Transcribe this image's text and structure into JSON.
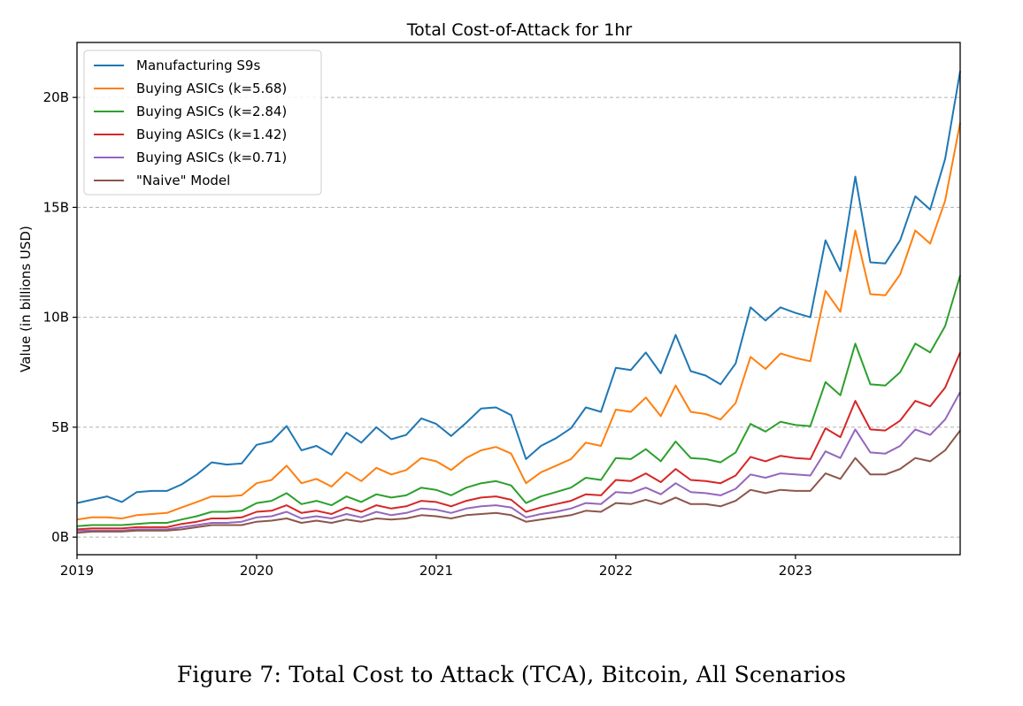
{
  "caption": "Figure 7: Total Cost to Attack (TCA), Bitcoin, All Scenarios",
  "chart_data": {
    "type": "line",
    "title": "Total Cost-of-Attack for 1hr",
    "xlabel": "",
    "ylabel": "Value (in billions USD)",
    "xlim": [
      2019.0,
      2023.917
    ],
    "ylim": [
      -0.8,
      22.5
    ],
    "x_ticks": [
      {
        "value": 2019,
        "label": "2019"
      },
      {
        "value": 2020,
        "label": "2020"
      },
      {
        "value": 2021,
        "label": "2021"
      },
      {
        "value": 2022,
        "label": "2022"
      },
      {
        "value": 2023,
        "label": "2023"
      }
    ],
    "y_ticks": [
      {
        "value": 0,
        "label": "0B"
      },
      {
        "value": 5,
        "label": "5B"
      },
      {
        "value": 10,
        "label": "10B"
      },
      {
        "value": 15,
        "label": "15B"
      },
      {
        "value": 20,
        "label": "20B"
      }
    ],
    "grid": "horizontal dashed",
    "legend_position": "top-left",
    "x": [
      2019.0,
      2019.083,
      2019.167,
      2019.25,
      2019.333,
      2019.417,
      2019.5,
      2019.583,
      2019.667,
      2019.75,
      2019.833,
      2019.917,
      2020.0,
      2020.083,
      2020.167,
      2020.25,
      2020.333,
      2020.417,
      2020.5,
      2020.583,
      2020.667,
      2020.75,
      2020.833,
      2020.917,
      2021.0,
      2021.083,
      2021.167,
      2021.25,
      2021.333,
      2021.417,
      2021.5,
      2021.583,
      2021.667,
      2021.75,
      2021.833,
      2021.917,
      2022.0,
      2022.083,
      2022.167,
      2022.25,
      2022.333,
      2022.417,
      2022.5,
      2022.583,
      2022.667,
      2022.75,
      2022.833,
      2022.917,
      2023.0,
      2023.083,
      2023.167,
      2023.25,
      2023.333,
      2023.417,
      2023.5,
      2023.583,
      2023.667,
      2023.75,
      2023.833,
      2023.917
    ],
    "series": [
      {
        "name": "Manufacturing S9s",
        "color": "#1f77b4",
        "values": [
          1.55,
          1.7,
          1.85,
          1.6,
          2.05,
          2.1,
          2.1,
          2.4,
          2.85,
          3.4,
          3.3,
          3.35,
          4.2,
          4.35,
          5.05,
          3.95,
          4.15,
          3.75,
          4.75,
          4.3,
          5.0,
          4.45,
          4.65,
          5.4,
          5.15,
          4.6,
          5.2,
          5.85,
          5.9,
          5.55,
          3.55,
          4.15,
          4.5,
          4.95,
          5.9,
          5.7,
          7.7,
          7.6,
          8.4,
          7.45,
          9.2,
          7.55,
          7.35,
          6.95,
          7.9,
          10.45,
          9.85,
          10.45,
          10.2,
          10.0,
          13.5,
          12.1,
          16.4,
          12.5,
          12.45,
          13.5,
          15.5,
          14.9,
          17.2,
          21.2
        ]
      },
      {
        "name": "Buying ASICs (k=5.68)",
        "color": "#ff7f0e",
        "values": [
          0.8,
          0.9,
          0.9,
          0.85,
          1.0,
          1.05,
          1.1,
          1.35,
          1.6,
          1.85,
          1.85,
          1.9,
          2.45,
          2.6,
          3.25,
          2.45,
          2.65,
          2.3,
          2.95,
          2.55,
          3.15,
          2.85,
          3.05,
          3.6,
          3.45,
          3.05,
          3.6,
          3.95,
          4.1,
          3.8,
          2.45,
          2.95,
          3.25,
          3.55,
          4.3,
          4.15,
          5.8,
          5.7,
          6.35,
          5.5,
          6.9,
          5.7,
          5.6,
          5.35,
          6.1,
          8.2,
          7.65,
          8.35,
          8.15,
          8.0,
          11.2,
          10.25,
          13.95,
          11.05,
          11.0,
          11.95,
          13.95,
          13.35,
          15.3,
          18.85
        ]
      },
      {
        "name": "Buying ASICs (k=2.84)",
        "color": "#2ca02c",
        "values": [
          0.5,
          0.55,
          0.55,
          0.55,
          0.6,
          0.65,
          0.65,
          0.8,
          0.95,
          1.15,
          1.15,
          1.2,
          1.55,
          1.65,
          2.0,
          1.5,
          1.65,
          1.45,
          1.85,
          1.6,
          1.95,
          1.8,
          1.9,
          2.25,
          2.15,
          1.9,
          2.25,
          2.45,
          2.55,
          2.35,
          1.55,
          1.85,
          2.05,
          2.25,
          2.7,
          2.6,
          3.6,
          3.55,
          4.0,
          3.45,
          4.35,
          3.6,
          3.55,
          3.4,
          3.85,
          5.15,
          4.8,
          5.25,
          5.1,
          5.05,
          7.05,
          6.45,
          8.8,
          6.95,
          6.9,
          7.5,
          8.8,
          8.4,
          9.6,
          11.9
        ]
      },
      {
        "name": "Buying ASICs (k=1.42)",
        "color": "#d62728",
        "values": [
          0.35,
          0.4,
          0.4,
          0.4,
          0.45,
          0.45,
          0.45,
          0.6,
          0.7,
          0.85,
          0.85,
          0.9,
          1.15,
          1.2,
          1.45,
          1.1,
          1.2,
          1.05,
          1.35,
          1.15,
          1.45,
          1.3,
          1.4,
          1.65,
          1.6,
          1.4,
          1.65,
          1.8,
          1.85,
          1.7,
          1.15,
          1.35,
          1.5,
          1.65,
          1.95,
          1.9,
          2.6,
          2.55,
          2.9,
          2.5,
          3.1,
          2.6,
          2.55,
          2.45,
          2.8,
          3.65,
          3.45,
          3.7,
          3.6,
          3.55,
          4.95,
          4.55,
          6.2,
          4.9,
          4.85,
          5.3,
          6.2,
          5.95,
          6.8,
          8.4
        ]
      },
      {
        "name": "Buying ASICs (k=0.71)",
        "color": "#9467bd",
        "values": [
          0.3,
          0.3,
          0.3,
          0.3,
          0.35,
          0.35,
          0.35,
          0.45,
          0.55,
          0.65,
          0.65,
          0.7,
          0.9,
          0.95,
          1.15,
          0.85,
          0.95,
          0.85,
          1.05,
          0.9,
          1.15,
          1.0,
          1.1,
          1.3,
          1.25,
          1.1,
          1.3,
          1.4,
          1.45,
          1.35,
          0.9,
          1.05,
          1.15,
          1.3,
          1.55,
          1.5,
          2.05,
          2.0,
          2.25,
          1.95,
          2.45,
          2.05,
          2.0,
          1.9,
          2.2,
          2.85,
          2.7,
          2.9,
          2.85,
          2.8,
          3.9,
          3.6,
          4.9,
          3.85,
          3.8,
          4.15,
          4.9,
          4.65,
          5.35,
          6.6
        ]
      },
      {
        "name": "\"Naive\" Model",
        "color": "#8c564b",
        "values": [
          0.2,
          0.25,
          0.25,
          0.25,
          0.3,
          0.3,
          0.3,
          0.35,
          0.45,
          0.55,
          0.55,
          0.55,
          0.7,
          0.75,
          0.85,
          0.65,
          0.75,
          0.65,
          0.8,
          0.7,
          0.85,
          0.8,
          0.85,
          1.0,
          0.95,
          0.85,
          1.0,
          1.05,
          1.1,
          1.0,
          0.7,
          0.8,
          0.9,
          1.0,
          1.2,
          1.15,
          1.55,
          1.5,
          1.7,
          1.5,
          1.8,
          1.5,
          1.5,
          1.4,
          1.65,
          2.15,
          2.0,
          2.15,
          2.1,
          2.1,
          2.9,
          2.65,
          3.6,
          2.85,
          2.85,
          3.1,
          3.6,
          3.45,
          3.95,
          4.85
        ]
      }
    ]
  }
}
